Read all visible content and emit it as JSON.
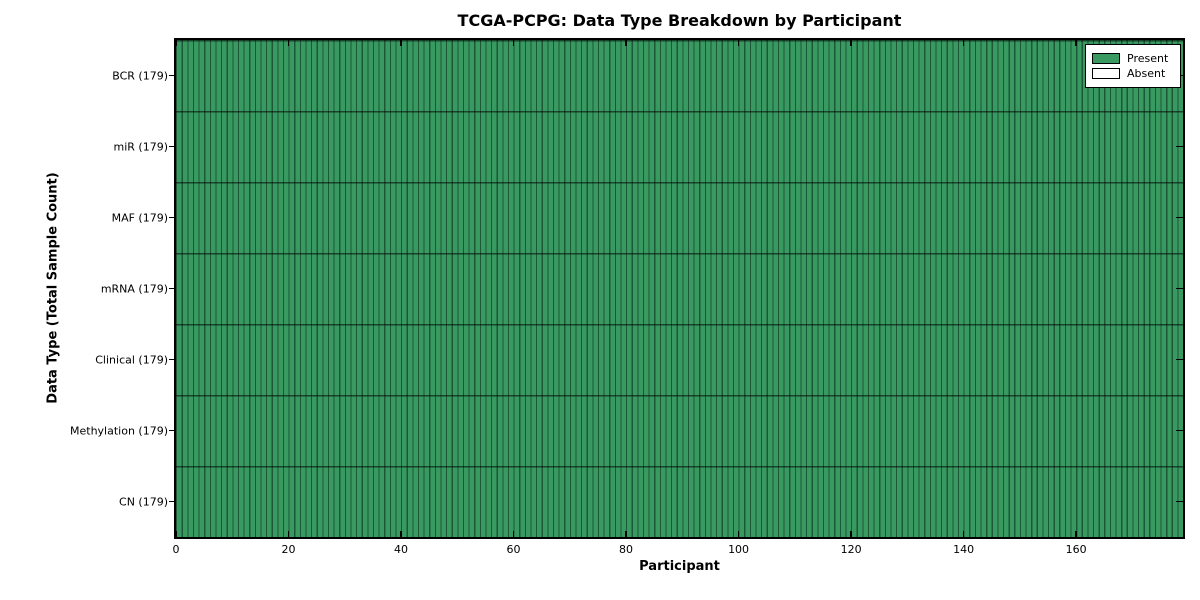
{
  "figure": {
    "title": "TCGA-PCPG: Data Type Breakdown by Participant",
    "xlabel": "Participant",
    "ylabel": "Data Type (Total Sample Count)"
  },
  "legend": {
    "position": "upper right",
    "items": [
      {
        "label": "Present",
        "color": "#389961"
      },
      {
        "label": "Absent",
        "color": "#ffffff"
      }
    ]
  },
  "chart_data": {
    "type": "heatmap",
    "title": "TCGA-PCPG: Data Type Breakdown by Participant",
    "xlabel": "Participant",
    "ylabel": "Data Type (Total Sample Count)",
    "n_participants": 179,
    "xlim": [
      0,
      179
    ],
    "x_ticks": [
      0,
      20,
      40,
      60,
      80,
      100,
      120,
      140,
      160
    ],
    "rows": [
      {
        "label": "BCR",
        "total": 179,
        "present": 179,
        "absent": 0
      },
      {
        "label": "miR",
        "total": 179,
        "present": 179,
        "absent": 0
      },
      {
        "label": "MAF",
        "total": 179,
        "present": 179,
        "absent": 0
      },
      {
        "label": "mRNA",
        "total": 179,
        "present": 179,
        "absent": 0
      },
      {
        "label": "Clinical",
        "total": 179,
        "present": 179,
        "absent": 0
      },
      {
        "label": "Methylation",
        "total": 179,
        "present": 179,
        "absent": 0
      },
      {
        "label": "CN",
        "total": 179,
        "present": 179,
        "absent": 0
      }
    ],
    "row_label_format": "{label} ({total})",
    "all_cells_value": "Present",
    "grid": true,
    "legend_position": "upper right",
    "colors": {
      "present": "#389961",
      "absent": "#ffffff",
      "cell_border": "#1c5737",
      "row_line": "rgba(0,0,0,0.55)",
      "spine": "#000000"
    }
  }
}
